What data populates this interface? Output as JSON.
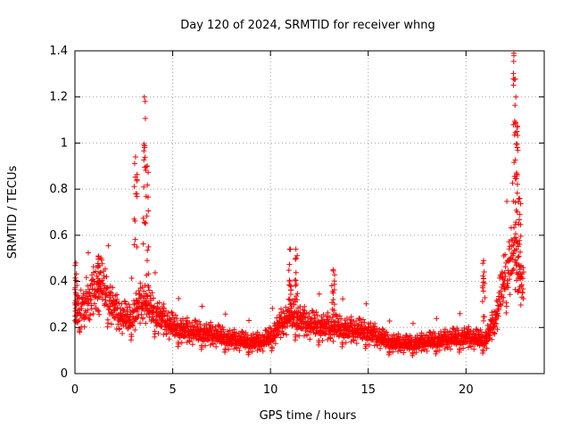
{
  "chart_data": {
    "type": "scatter",
    "title": "Day 120 of 2024, SRMTID for receiver whng",
    "xlabel": "GPS time / hours",
    "ylabel": "SRMTID / TECUs",
    "xlim": [
      0,
      24
    ],
    "ylim": [
      0,
      1.4
    ],
    "x_ticks": [
      0,
      5,
      10,
      15,
      20
    ],
    "x_tick_labels": [
      "0",
      "5",
      "10",
      "15",
      "20"
    ],
    "y_ticks": [
      0,
      0.2,
      0.4,
      0.6,
      0.8,
      1.0,
      1.2,
      1.4
    ],
    "y_tick_labels": [
      "0",
      "0.2",
      "0.4",
      "0.6",
      "0.8",
      "1",
      "1.2",
      "1.4"
    ],
    "grid": true,
    "marker": "+",
    "series": [
      {
        "name": "SRMTID",
        "color": "#ff0000",
        "profile": {
          "hours": [
            0.0,
            0.5,
            1.0,
            1.3,
            1.8,
            2.2,
            2.8,
            3.1,
            3.3,
            3.55,
            3.8,
            4.2,
            5.0,
            6.0,
            7.0,
            8.0,
            8.8,
            9.6,
            10.0,
            10.5,
            11.0,
            11.5,
            12.0,
            13.0,
            14.0,
            15.0,
            16.0,
            17.0,
            18.0,
            19.0,
            20.0,
            20.5,
            21.0,
            21.5,
            22.0,
            22.4,
            22.8,
            22.95
          ],
          "typical": [
            0.27,
            0.3,
            0.34,
            0.37,
            0.3,
            0.24,
            0.22,
            0.26,
            0.28,
            0.3,
            0.27,
            0.24,
            0.19,
            0.17,
            0.16,
            0.14,
            0.13,
            0.13,
            0.15,
            0.2,
            0.24,
            0.22,
            0.2,
            0.19,
            0.18,
            0.17,
            0.13,
            0.12,
            0.13,
            0.14,
            0.15,
            0.14,
            0.14,
            0.22,
            0.4,
            0.5,
            0.4,
            0.32
          ]
        },
        "peaks": [
          {
            "hour": 0.05,
            "value": 0.48
          },
          {
            "hour": 1.2,
            "value": 0.51
          },
          {
            "hour": 3.1,
            "value": 0.94
          },
          {
            "hour": 3.55,
            "value": 1.2
          },
          {
            "hour": 3.7,
            "value": 0.9
          },
          {
            "hour": 11.0,
            "value": 0.54
          },
          {
            "hour": 11.3,
            "value": 0.54
          },
          {
            "hour": 13.2,
            "value": 0.45
          },
          {
            "hour": 20.9,
            "value": 0.49
          },
          {
            "hour": 22.45,
            "value": 1.39
          },
          {
            "hour": 22.55,
            "value": 1.2
          },
          {
            "hour": 22.6,
            "value": 1.05
          },
          {
            "hour": 22.75,
            "value": 0.76
          }
        ]
      }
    ]
  }
}
